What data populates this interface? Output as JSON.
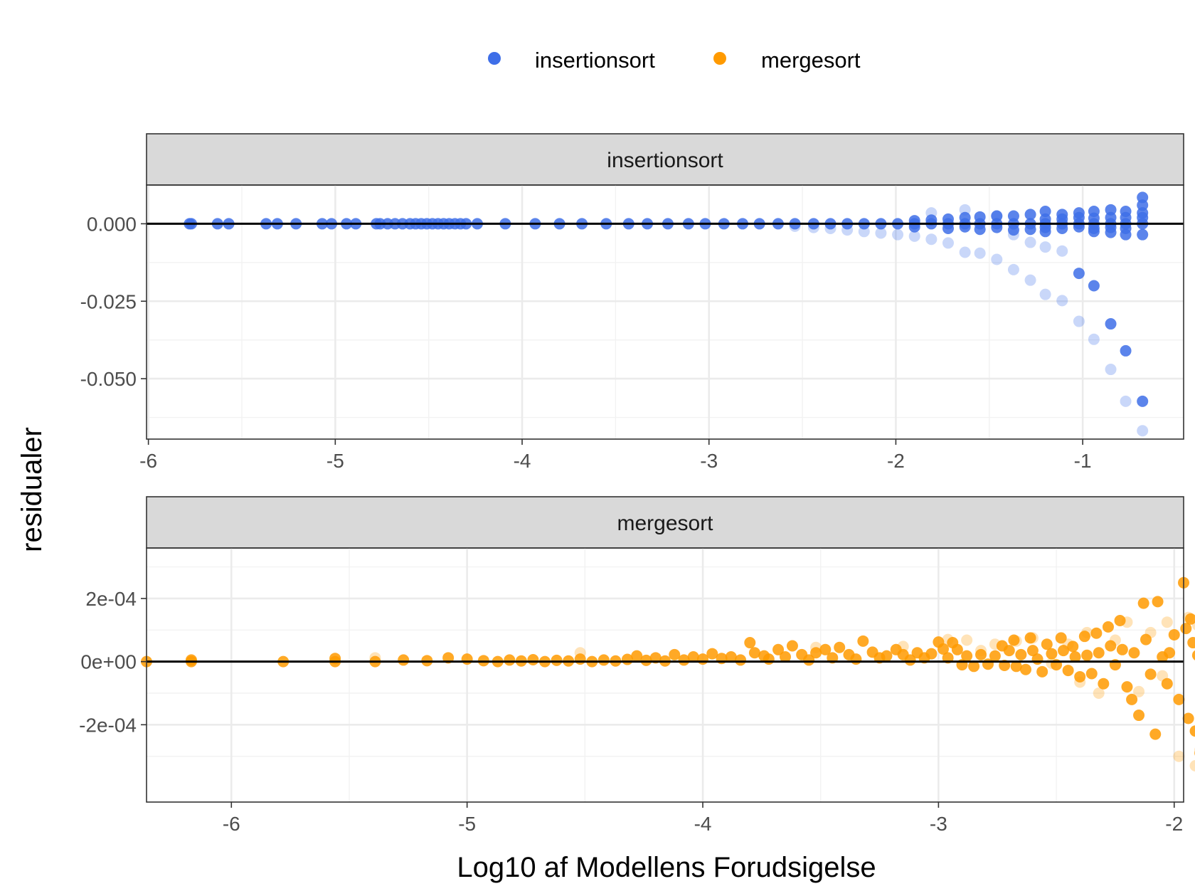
{
  "legend": {
    "items": [
      {
        "label": "insertionsort",
        "color": "#3E6EE8"
      },
      {
        "label": "mergesort",
        "color": "#FF9A00"
      }
    ]
  },
  "axes": {
    "xlabel": "Log10 af Modellens Forudsigelse",
    "ylabel": "residualer"
  },
  "chart_data": [
    {
      "type": "scatter",
      "panel_title": "insertionsort",
      "color": "#3E6EE8",
      "xlim": [
        -6.01,
        -0.46
      ],
      "ylim": [
        -0.0695,
        0.0125
      ],
      "x_ticks": [
        -6,
        -5,
        -4,
        -3,
        -2,
        -1
      ],
      "x_tick_labels": [
        "-6",
        "-5",
        "-4",
        "-3",
        "-2",
        "-1"
      ],
      "y_ticks": [
        0.0,
        -0.025,
        -0.05
      ],
      "y_tick_labels": [
        "0.000",
        "-0.025",
        "-0.050"
      ],
      "hline": 0,
      "grid": true,
      "points_opaque": [
        [
          -5.78,
          0
        ],
        [
          -5.77,
          0
        ],
        [
          -5.63,
          0
        ],
        [
          -5.57,
          0
        ],
        [
          -5.37,
          0
        ],
        [
          -5.31,
          0
        ],
        [
          -5.21,
          0
        ],
        [
          -5.07,
          0
        ],
        [
          -5.02,
          0
        ],
        [
          -4.94,
          0
        ],
        [
          -4.89,
          0
        ],
        [
          -4.78,
          0
        ],
        [
          -4.76,
          0
        ],
        [
          -4.72,
          0
        ],
        [
          -4.68,
          0
        ],
        [
          -4.64,
          0
        ],
        [
          -4.6,
          0
        ],
        [
          -4.57,
          0
        ],
        [
          -4.54,
          0
        ],
        [
          -4.51,
          0
        ],
        [
          -4.48,
          0
        ],
        [
          -4.45,
          0
        ],
        [
          -4.42,
          0
        ],
        [
          -4.39,
          0
        ],
        [
          -4.36,
          0
        ],
        [
          -4.33,
          0
        ],
        [
          -4.3,
          0
        ],
        [
          -4.24,
          0
        ],
        [
          -4.09,
          0
        ],
        [
          -3.93,
          0
        ],
        [
          -3.8,
          0
        ],
        [
          -3.68,
          0
        ],
        [
          -3.55,
          0
        ],
        [
          -3.43,
          0
        ],
        [
          -3.33,
          0
        ],
        [
          -3.22,
          0
        ],
        [
          -3.11,
          0
        ],
        [
          -3.02,
          0
        ],
        [
          -2.92,
          0
        ],
        [
          -2.82,
          0
        ],
        [
          -2.73,
          0
        ],
        [
          -2.63,
          0
        ],
        [
          -2.54,
          0
        ],
        [
          -2.44,
          0
        ],
        [
          -2.35,
          0
        ],
        [
          -2.26,
          0
        ],
        [
          -2.17,
          0
        ],
        [
          -2.08,
          0
        ],
        [
          -1.99,
          0
        ],
        [
          -1.9,
          0
        ],
        [
          -1.81,
          0
        ],
        [
          -1.72,
          0
        ],
        [
          -1.63,
          0
        ],
        [
          -1.55,
          0
        ],
        [
          -1.46,
          0
        ],
        [
          -1.37,
          0
        ],
        [
          -1.28,
          0
        ],
        [
          -1.2,
          0
        ],
        [
          -1.11,
          0
        ],
        [
          -1.02,
          0
        ],
        [
          -0.94,
          0
        ],
        [
          -0.85,
          0
        ],
        [
          -0.77,
          0
        ],
        [
          -0.68,
          0
        ],
        [
          -1.9,
          0.001
        ],
        [
          -1.9,
          -0.001
        ],
        [
          -1.81,
          0.0012
        ],
        [
          -1.72,
          0.0015
        ],
        [
          -1.72,
          -0.0015
        ],
        [
          -1.63,
          0.002
        ],
        [
          -1.63,
          -0.001
        ],
        [
          -1.55,
          0.0022
        ],
        [
          -1.55,
          -0.0018
        ],
        [
          -1.46,
          0.0025
        ],
        [
          -1.46,
          -0.0012
        ],
        [
          -1.37,
          0.0025
        ],
        [
          -1.37,
          -0.002
        ],
        [
          -1.28,
          0.003
        ],
        [
          -1.28,
          -0.0018
        ],
        [
          -1.2,
          0.004
        ],
        [
          -1.2,
          0.0015
        ],
        [
          -1.2,
          -0.0012
        ],
        [
          -1.2,
          -0.0025
        ],
        [
          -1.11,
          0.003
        ],
        [
          -1.11,
          0.0015
        ],
        [
          -1.11,
          -0.0015
        ],
        [
          -1.02,
          0.0035
        ],
        [
          -1.02,
          0.002
        ],
        [
          -1.02,
          -0.001
        ],
        [
          -0.94,
          0.004
        ],
        [
          -0.94,
          0.0018
        ],
        [
          -0.94,
          -0.0015
        ],
        [
          -0.94,
          -0.0025
        ],
        [
          -0.85,
          0.0045
        ],
        [
          -0.85,
          0.002
        ],
        [
          -0.85,
          -0.0012
        ],
        [
          -0.85,
          -0.0028
        ],
        [
          -0.77,
          0.004
        ],
        [
          -0.77,
          0.002
        ],
        [
          -0.77,
          -0.0015
        ],
        [
          -0.77,
          -0.0035
        ],
        [
          -0.68,
          0.0085
        ],
        [
          -0.68,
          0.006
        ],
        [
          -0.68,
          0.0035
        ],
        [
          -0.68,
          0.002
        ],
        [
          -0.68,
          -0.0035
        ],
        [
          -1.02,
          -0.016
        ],
        [
          -0.94,
          -0.02
        ],
        [
          -0.85,
          -0.0323
        ],
        [
          -0.77,
          -0.041
        ],
        [
          -0.68,
          -0.0573
        ]
      ],
      "points_faint": [
        [
          -2.54,
          -0.0008
        ],
        [
          -2.44,
          -0.0012
        ],
        [
          -2.35,
          -0.0015
        ],
        [
          -2.26,
          -0.002
        ],
        [
          -2.17,
          -0.0025
        ],
        [
          -2.08,
          -0.003
        ],
        [
          -1.99,
          -0.0035
        ],
        [
          -1.9,
          -0.004
        ],
        [
          -1.81,
          -0.005
        ],
        [
          -1.72,
          -0.0062
        ],
        [
          -1.63,
          -0.0092
        ],
        [
          -1.55,
          -0.0095
        ],
        [
          -1.46,
          -0.0115
        ],
        [
          -1.37,
          -0.0148
        ],
        [
          -1.28,
          -0.0182
        ],
        [
          -1.2,
          -0.0228
        ],
        [
          -1.11,
          -0.0248
        ],
        [
          -1.02,
          -0.0315
        ],
        [
          -0.94,
          -0.0373
        ],
        [
          -0.85,
          -0.047
        ],
        [
          -0.77,
          -0.0573
        ],
        [
          -0.68,
          -0.0668
        ],
        [
          -1.81,
          0.0035
        ],
        [
          -1.63,
          0.0045
        ],
        [
          -1.46,
          0.0025
        ],
        [
          -1.37,
          -0.0035
        ],
        [
          -1.28,
          -0.006
        ],
        [
          -1.2,
          -0.0075
        ],
        [
          -1.11,
          -0.0088
        ]
      ]
    },
    {
      "type": "scatter",
      "panel_title": "mergesort",
      "color": "#FF9A00",
      "xlim": [
        -6.36,
        -1.96
      ],
      "ylim": [
        -0.000445,
        0.00036
      ],
      "x_ticks": [
        -6,
        -5,
        -4,
        -3,
        -2
      ],
      "x_tick_labels": [
        "-6",
        "-5",
        "-4",
        "-3",
        "-2"
      ],
      "y_ticks": [
        0.0002,
        0.0,
        -0.0002
      ],
      "y_tick_labels": [
        "2e-04",
        "0e+00",
        "-2e-04"
      ],
      "hline": 0,
      "grid": true,
      "points_opaque": [
        [
          -6.36,
          0
        ],
        [
          -6.17,
          0
        ],
        [
          -6.17,
          5e-06
        ],
        [
          -5.78,
          0
        ],
        [
          -5.56,
          0
        ],
        [
          -5.56,
          1e-05
        ],
        [
          -5.39,
          0
        ],
        [
          -5.27,
          5e-06
        ],
        [
          -5.17,
          3e-06
        ],
        [
          -5.08,
          1.2e-05
        ],
        [
          -5.0,
          8e-06
        ],
        [
          -4.93,
          3e-06
        ],
        [
          -4.87,
          0
        ],
        [
          -4.82,
          5e-06
        ],
        [
          -4.77,
          2e-06
        ],
        [
          -4.72,
          6e-06
        ],
        [
          -4.67,
          0
        ],
        [
          -4.62,
          4e-06
        ],
        [
          -4.57,
          2e-06
        ],
        [
          -4.52,
          8e-06
        ],
        [
          -4.47,
          0
        ],
        [
          -4.42,
          5e-06
        ],
        [
          -4.37,
          2e-06
        ],
        [
          -4.32,
          7e-06
        ],
        [
          -4.28,
          1.8e-05
        ],
        [
          -4.24,
          4e-06
        ],
        [
          -4.2,
          1.2e-05
        ],
        [
          -4.16,
          2e-06
        ],
        [
          -4.12,
          2.2e-05
        ],
        [
          -4.08,
          5e-06
        ],
        [
          -4.04,
          1.5e-05
        ],
        [
          -4.0,
          8e-06
        ],
        [
          -3.96,
          2.5e-05
        ],
        [
          -3.92,
          1e-05
        ],
        [
          -3.88,
          1.5e-05
        ],
        [
          -3.84,
          5e-06
        ],
        [
          -3.8,
          6e-05
        ],
        [
          -3.78,
          2.8e-05
        ],
        [
          -3.74,
          1.8e-05
        ],
        [
          -3.72,
          8e-06
        ],
        [
          -3.68,
          3.8e-05
        ],
        [
          -3.65,
          1.5e-05
        ],
        [
          -3.62,
          5e-05
        ],
        [
          -3.58,
          2.2e-05
        ],
        [
          -3.55,
          5e-06
        ],
        [
          -3.52,
          2.8e-05
        ],
        [
          -3.48,
          3.8e-05
        ],
        [
          -3.45,
          1.2e-05
        ],
        [
          -3.42,
          4.5e-05
        ],
        [
          -3.38,
          2.2e-05
        ],
        [
          -3.35,
          8e-06
        ],
        [
          -3.32,
          6.5e-05
        ],
        [
          -3.28,
          3e-05
        ],
        [
          -3.25,
          1.2e-05
        ],
        [
          -3.22,
          1.8e-05
        ],
        [
          -3.18,
          3.8e-05
        ],
        [
          -3.15,
          2.2e-05
        ],
        [
          -3.12,
          5e-06
        ],
        [
          -3.09,
          2.8e-05
        ],
        [
          -3.06,
          1.2e-05
        ],
        [
          -3.03,
          2.5e-05
        ],
        [
          -3.0,
          6.2e-05
        ],
        [
          -2.98,
          4e-05
        ],
        [
          -2.96,
          1.2e-05
        ],
        [
          -2.94,
          6e-05
        ],
        [
          -2.92,
          3.8e-05
        ],
        [
          -2.9,
          -1e-05
        ],
        [
          -2.88,
          1.8e-05
        ],
        [
          -2.85,
          -1.5e-05
        ],
        [
          -2.82,
          2.2e-05
        ],
        [
          -2.79,
          -8e-06
        ],
        [
          -2.76,
          1.8e-05
        ],
        [
          -2.73,
          5e-05
        ],
        [
          -2.72,
          -1.2e-05
        ],
        [
          -2.7,
          3.5e-05
        ],
        [
          -2.68,
          6.8e-05
        ],
        [
          -2.67,
          -1.5e-05
        ],
        [
          -2.65,
          2.2e-05
        ],
        [
          -2.63,
          -2.5e-05
        ],
        [
          -2.61,
          7.5e-05
        ],
        [
          -2.6,
          3.5e-05
        ],
        [
          -2.58,
          8e-06
        ],
        [
          -2.56,
          -3.2e-05
        ],
        [
          -2.54,
          5.5e-05
        ],
        [
          -2.52,
          2.5e-05
        ],
        [
          -2.5,
          -1e-05
        ],
        [
          -2.48,
          7.5e-05
        ],
        [
          -2.47,
          3.5e-05
        ],
        [
          -2.45,
          -2.8e-05
        ],
        [
          -2.43,
          4.8e-05
        ],
        [
          -2.42,
          1.5e-05
        ],
        [
          -2.4,
          -4.8e-05
        ],
        [
          -2.38,
          8e-05
        ],
        [
          -2.37,
          2e-05
        ],
        [
          -2.35,
          -3.8e-05
        ],
        [
          -2.33,
          9e-05
        ],
        [
          -2.32,
          2.8e-05
        ],
        [
          -2.3,
          -7e-05
        ],
        [
          -2.28,
          0.00011
        ],
        [
          -2.27,
          5e-05
        ],
        [
          -2.25,
          -1e-05
        ],
        [
          -2.23,
          0.00013
        ],
        [
          -2.22,
          3.8e-05
        ],
        [
          -2.2,
          -8e-05
        ],
        [
          -2.18,
          -0.00012
        ],
        [
          -2.17,
          2.8e-05
        ],
        [
          -2.15,
          -0.00017
        ],
        [
          -2.13,
          0.000185
        ],
        [
          -2.12,
          7e-05
        ],
        [
          -2.1,
          -4e-05
        ],
        [
          -2.08,
          -0.00023
        ],
        [
          -2.07,
          0.00019
        ],
        [
          -2.05,
          1.5e-05
        ],
        [
          -2.03,
          -7e-05
        ],
        [
          -2.02,
          2.8e-05
        ],
        [
          -2.0,
          8.5e-05
        ],
        [
          -1.98,
          -0.00012
        ],
        [
          -1.96,
          0.00025
        ],
        [
          -1.95,
          0.000105
        ],
        [
          -1.94,
          -0.00018
        ],
        [
          -1.93,
          0.000135
        ],
        [
          -1.92,
          6e-05
        ],
        [
          -1.91,
          -0.00022
        ],
        [
          -1.9,
          2e-05
        ],
        [
          -1.89,
          -0.00029
        ]
      ],
      "points_faint": [
        [
          -5.39,
          1.2e-05
        ],
        [
          -4.52,
          2.8e-05
        ],
        [
          -3.52,
          4.5e-05
        ],
        [
          -3.15,
          4.8e-05
        ],
        [
          -2.96,
          7e-05
        ],
        [
          -2.88,
          6.8e-05
        ],
        [
          -2.82,
          3.5e-05
        ],
        [
          -2.76,
          5.5e-05
        ],
        [
          -2.67,
          6.5e-05
        ],
        [
          -2.6,
          7.5e-05
        ],
        [
          -2.52,
          -5e-06
        ],
        [
          -2.45,
          5.5e-05
        ],
        [
          -2.4,
          -6.5e-05
        ],
        [
          -2.37,
          9.2e-05
        ],
        [
          -2.32,
          -0.0001
        ],
        [
          -2.25,
          6.8e-05
        ],
        [
          -2.2,
          0.000125
        ],
        [
          -2.15,
          -9.5e-05
        ],
        [
          -2.1,
          9.2e-05
        ],
        [
          -2.05,
          -4.5e-05
        ],
        [
          -2.03,
          0.000125
        ],
        [
          -1.98,
          -0.0003
        ],
        [
          -1.94,
          0.00014
        ],
        [
          -1.91,
          -0.00033
        ],
        [
          -1.9,
          0.000115
        ],
        [
          -1.89,
          -0.00028
        ]
      ]
    }
  ]
}
